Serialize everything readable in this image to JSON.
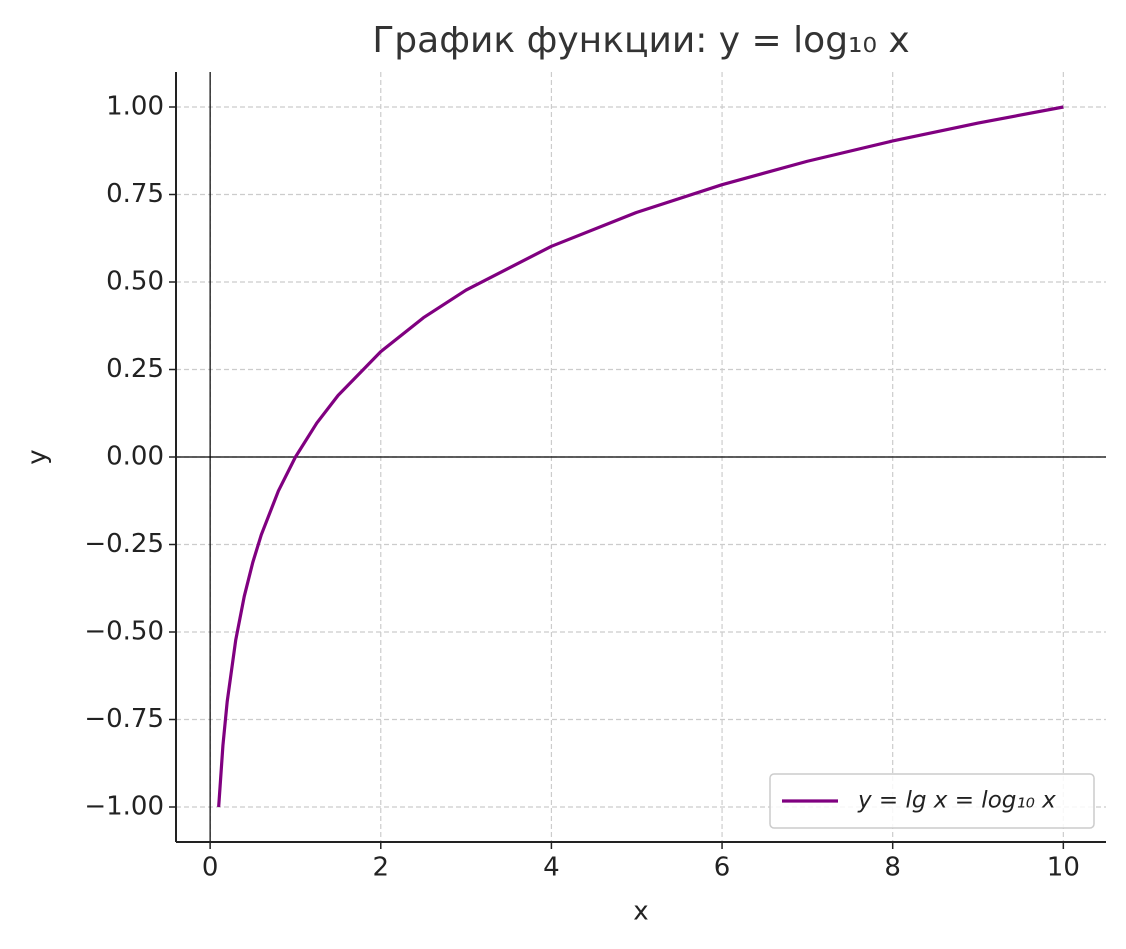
{
  "chart_data": {
    "type": "line",
    "title": "График функции: y = log₁₀ x",
    "x_label": "x",
    "y_label": "y",
    "x": [
      0.1,
      0.15,
      0.2,
      0.3,
      0.4,
      0.5,
      0.6,
      0.8,
      1,
      1.25,
      1.5,
      2,
      2.5,
      3,
      4,
      5,
      6,
      7,
      8,
      9,
      10
    ],
    "series": [
      {
        "name": "y = lg x = log₁₀ x",
        "color": "#800080",
        "values": [
          -1,
          -0.824,
          -0.699,
          -0.523,
          -0.398,
          -0.301,
          -0.222,
          -0.097,
          0,
          0.097,
          0.176,
          0.301,
          0.398,
          0.477,
          0.602,
          0.699,
          0.778,
          0.845,
          0.903,
          0.954,
          1
        ]
      }
    ],
    "xlim": [
      -0.4,
      10.5
    ],
    "ylim": [
      -1.1,
      1.1
    ],
    "xticks": [
      0,
      2,
      4,
      6,
      8,
      10
    ],
    "yticks": [
      {
        "value": -1,
        "label": "−1.00"
      },
      {
        "value": -0.75,
        "label": "−0.75"
      },
      {
        "value": -0.5,
        "label": "−0.50"
      },
      {
        "value": -0.25,
        "label": "−0.25"
      },
      {
        "value": 0,
        "label": "0.00"
      },
      {
        "value": 0.25,
        "label": "0.25"
      },
      {
        "value": 0.5,
        "label": "0.50"
      },
      {
        "value": 0.75,
        "label": "0.75"
      },
      {
        "value": 1,
        "label": "1.00"
      }
    ],
    "grid": true,
    "legend": "lower right"
  }
}
